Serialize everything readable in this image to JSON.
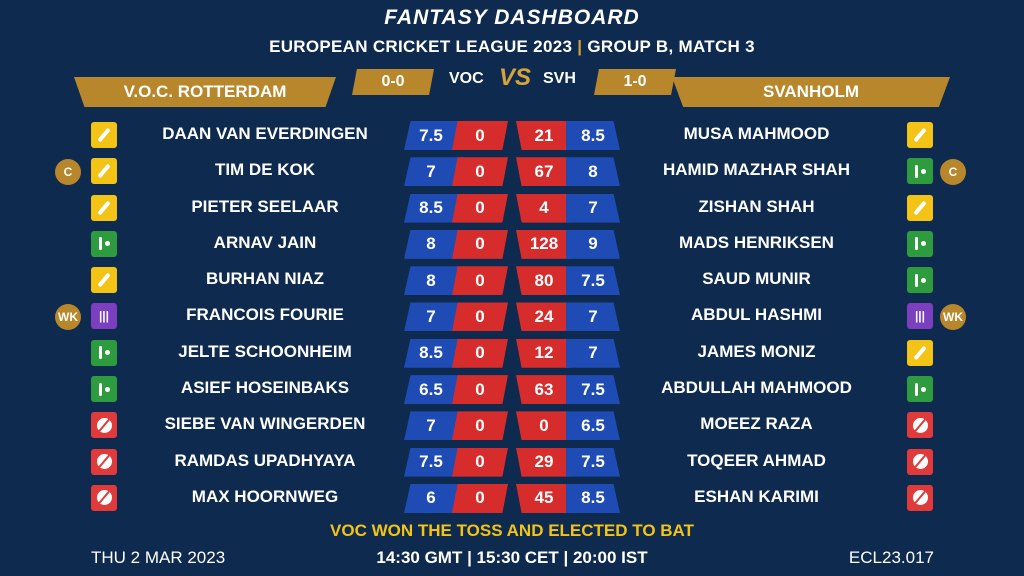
{
  "header": {
    "title": "FANTASY DASHBOARD",
    "subtitle_left": "EUROPEAN CRICKET LEAGUE 2023",
    "subtitle_sep": "|",
    "subtitle_right": "GROUP B, MATCH 3"
  },
  "teams": {
    "left": {
      "name": "V.O.C. ROTTERDAM",
      "abbr": "VOC",
      "record": "0-0"
    },
    "right": {
      "name": "SVANHOLM",
      "abbr": "SVH",
      "record": "1-0"
    },
    "vs": "VS"
  },
  "players_left": [
    {
      "name": "DAAN VAN EVERDINGEN",
      "credit": "7.5",
      "points": "0",
      "role": "bat",
      "badge": ""
    },
    {
      "name": "TIM DE KOK",
      "credit": "7",
      "points": "0",
      "role": "bat",
      "badge": "C"
    },
    {
      "name": "PIETER SEELAAR",
      "credit": "8.5",
      "points": "0",
      "role": "bat",
      "badge": ""
    },
    {
      "name": "ARNAV JAIN",
      "credit": "8",
      "points": "0",
      "role": "ar",
      "badge": ""
    },
    {
      "name": "BURHAN NIAZ",
      "credit": "8",
      "points": "0",
      "role": "bat",
      "badge": ""
    },
    {
      "name": "FRANCOIS FOURIE",
      "credit": "7",
      "points": "0",
      "role": "wk",
      "badge": "WK"
    },
    {
      "name": "JELTE SCHOONHEIM",
      "credit": "8.5",
      "points": "0",
      "role": "ar",
      "badge": ""
    },
    {
      "name": "ASIEF HOSEINBAKS",
      "credit": "6.5",
      "points": "0",
      "role": "ar",
      "badge": ""
    },
    {
      "name": "SIEBE VAN WINGERDEN",
      "credit": "7",
      "points": "0",
      "role": "bowl",
      "badge": ""
    },
    {
      "name": "RAMDAS UPADHYAYA",
      "credit": "7.5",
      "points": "0",
      "role": "bowl",
      "badge": ""
    },
    {
      "name": "MAX HOORNWEG",
      "credit": "6",
      "points": "0",
      "role": "bowl",
      "badge": ""
    }
  ],
  "players_right": [
    {
      "name": "MUSA MAHMOOD",
      "credit": "8.5",
      "points": "21",
      "role": "bat",
      "badge": ""
    },
    {
      "name": "HAMID MAZHAR SHAH",
      "credit": "8",
      "points": "67",
      "role": "ar",
      "badge": "C"
    },
    {
      "name": "ZISHAN SHAH",
      "credit": "7",
      "points": "4",
      "role": "bat",
      "badge": ""
    },
    {
      "name": "MADS HENRIKSEN",
      "credit": "9",
      "points": "128",
      "role": "ar",
      "badge": ""
    },
    {
      "name": "SAUD MUNIR",
      "credit": "7.5",
      "points": "80",
      "role": "ar",
      "badge": ""
    },
    {
      "name": "ABDUL HASHMI",
      "credit": "7",
      "points": "24",
      "role": "wk",
      "badge": "WK"
    },
    {
      "name": "JAMES MONIZ",
      "credit": "7",
      "points": "12",
      "role": "bat",
      "badge": ""
    },
    {
      "name": "ABDULLAH MAHMOOD",
      "credit": "7.5",
      "points": "63",
      "role": "ar",
      "badge": ""
    },
    {
      "name": "MOEEZ RAZA",
      "credit": "6.5",
      "points": "0",
      "role": "bowl",
      "badge": ""
    },
    {
      "name": "TOQEER AHMAD",
      "credit": "7.5",
      "points": "29",
      "role": "bowl",
      "badge": ""
    },
    {
      "name": "ESHAN KARIMI",
      "credit": "8.5",
      "points": "45",
      "role": "bowl",
      "badge": ""
    }
  ],
  "role_icons": {
    "bat": "cricket-bat-icon",
    "ar": "all-rounder-icon",
    "wk": "wicketkeeper-stumps-icon",
    "bowl": "cricket-ball-icon"
  },
  "colors": {
    "background": "#0f2a4f",
    "gold": "#b8862b",
    "credit_blue": "#1e4bb4",
    "points_red": "#d62c2c",
    "toss_yellow": "#f3c316"
  },
  "footer": {
    "toss": "VOC WON THE TOSS AND ELECTED TO BAT",
    "date": "THU 2 MAR 2023",
    "time": "14:30 GMT | 15:30 CET | 20:00 IST",
    "code": "ECL23.017"
  }
}
